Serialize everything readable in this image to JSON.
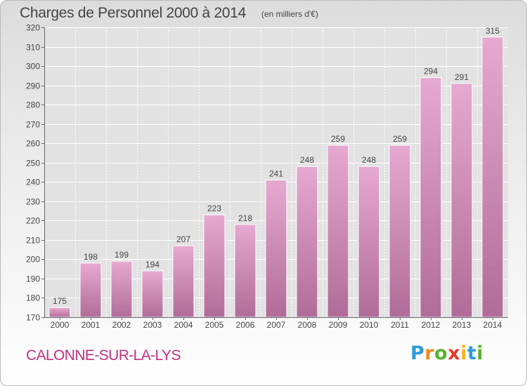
{
  "chart_data": {
    "type": "bar",
    "title": "Charges de Personnel 2000 à 2014",
    "subtitle": "(en milliers d'€)",
    "categories": [
      "2000",
      "2001",
      "2002",
      "2003",
      "2004",
      "2005",
      "2006",
      "2007",
      "2008",
      "2009",
      "2010",
      "2011",
      "2012",
      "2013",
      "2014"
    ],
    "values": [
      175,
      198,
      199,
      194,
      207,
      223,
      218,
      241,
      248,
      259,
      248,
      259,
      294,
      291,
      315
    ],
    "ylim": [
      170,
      320
    ],
    "yticks": [
      170,
      180,
      190,
      200,
      210,
      220,
      230,
      240,
      250,
      260,
      270,
      280,
      290,
      300,
      310,
      320
    ],
    "grid": true,
    "bar_color": "#c0307f"
  },
  "location": "CALONNE-SUR-LA-LYS",
  "logo": {
    "text": "Proxiti",
    "letters": [
      {
        "ch": "P",
        "color": "#2e9ad6"
      },
      {
        "ch": "r",
        "color": "#f08a1c"
      },
      {
        "ch": "o",
        "color": "#5ab031"
      },
      {
        "ch": "x",
        "color": "#e23b2e"
      },
      {
        "ch": "i",
        "color": "#f2b61e"
      },
      {
        "ch": "t",
        "color": "#2e9ad6"
      },
      {
        "ch": "i",
        "color": "#5ab031"
      }
    ]
  }
}
